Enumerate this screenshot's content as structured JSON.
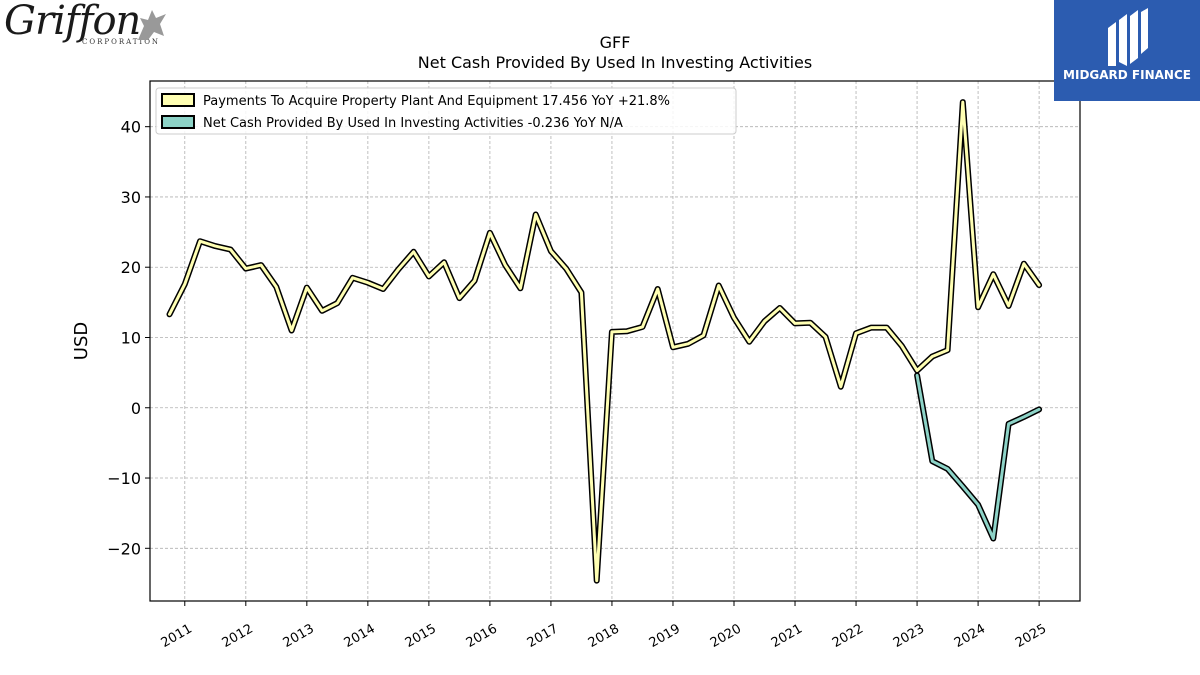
{
  "logos": {
    "left_company": "Griffon",
    "left_sub": "CORPORATION",
    "right_company": "MIDGARD FINANCE"
  },
  "chart_data": {
    "type": "line",
    "title": "GFF",
    "subtitle": "Net Cash Provided By Used In Investing Activities",
    "xlabel": "",
    "ylabel": "USD",
    "xlim": [
      2010.43,
      2025.67
    ],
    "ylim": [
      -27.5,
      46.5
    ],
    "x_ticks": [
      "2011",
      "2012",
      "2013",
      "2014",
      "2015",
      "2016",
      "2017",
      "2018",
      "2019",
      "2020",
      "2021",
      "2022",
      "2023",
      "2024",
      "2025"
    ],
    "y_ticks": [
      -20,
      -10,
      0,
      10,
      20,
      30,
      40
    ],
    "y_tick_labels": [
      "−20",
      "−10",
      "0",
      "10",
      "20",
      "30",
      "40"
    ],
    "grid": true,
    "legend_position": "top-left",
    "series": [
      {
        "name": "Payments To Acquire Property Plant And Equipment",
        "legend_label": "Payments To Acquire Property Plant And Equipment  17.456 YoY +21.8%",
        "color": "#ffffb3",
        "x": [
          2010.75,
          2011.0,
          2011.25,
          2011.5,
          2011.75,
          2012.0,
          2012.25,
          2012.5,
          2012.75,
          2013.0,
          2013.25,
          2013.5,
          2013.75,
          2014.0,
          2014.25,
          2014.5,
          2014.75,
          2015.0,
          2015.25,
          2015.5,
          2015.75,
          2016.0,
          2016.25,
          2016.5,
          2016.75,
          2017.0,
          2017.25,
          2017.5,
          2017.75,
          2018.0,
          2018.25,
          2018.5,
          2018.75,
          2019.0,
          2019.25,
          2019.5,
          2019.75,
          2020.0,
          2020.25,
          2020.5,
          2020.75,
          2021.0,
          2021.25,
          2021.5,
          2021.75,
          2022.0,
          2022.25,
          2022.5,
          2022.75,
          2023.0,
          2023.25,
          2023.5,
          2023.75,
          2024.0,
          2024.25,
          2024.5,
          2024.75,
          2025.0
        ],
        "values": [
          13.3,
          17.6,
          23.7,
          23.0,
          22.5,
          19.8,
          20.3,
          17.2,
          11.0,
          17.1,
          13.8,
          14.9,
          18.5,
          17.8,
          16.9,
          19.7,
          22.2,
          18.7,
          20.7,
          15.6,
          18.1,
          24.9,
          20.3,
          17.0,
          27.5,
          22.3,
          19.8,
          16.4,
          -24.6,
          10.8,
          10.9,
          11.5,
          16.9,
          8.6,
          9.1,
          10.3,
          17.4,
          12.8,
          9.4,
          12.3,
          14.2,
          12.0,
          12.1,
          10.1,
          3.0,
          10.6,
          11.4,
          11.4,
          8.8,
          5.3,
          7.3,
          8.2,
          43.5,
          14.3,
          19.0,
          14.5,
          20.5,
          17.456
        ]
      },
      {
        "name": "Net Cash Provided By Used In Investing Activities",
        "legend_label": "Net Cash Provided By Used In Investing Activities  -0.236 YoY N/A",
        "color": "#8dd3c7",
        "x": [
          2023.0,
          2023.25,
          2023.5,
          2023.75,
          2024.0,
          2024.25,
          2024.5,
          2024.75,
          2025.0
        ],
        "values": [
          4.6,
          -7.6,
          -8.7,
          -11.2,
          -13.8,
          -18.6,
          -2.3,
          -1.3,
          -0.236
        ]
      }
    ]
  }
}
